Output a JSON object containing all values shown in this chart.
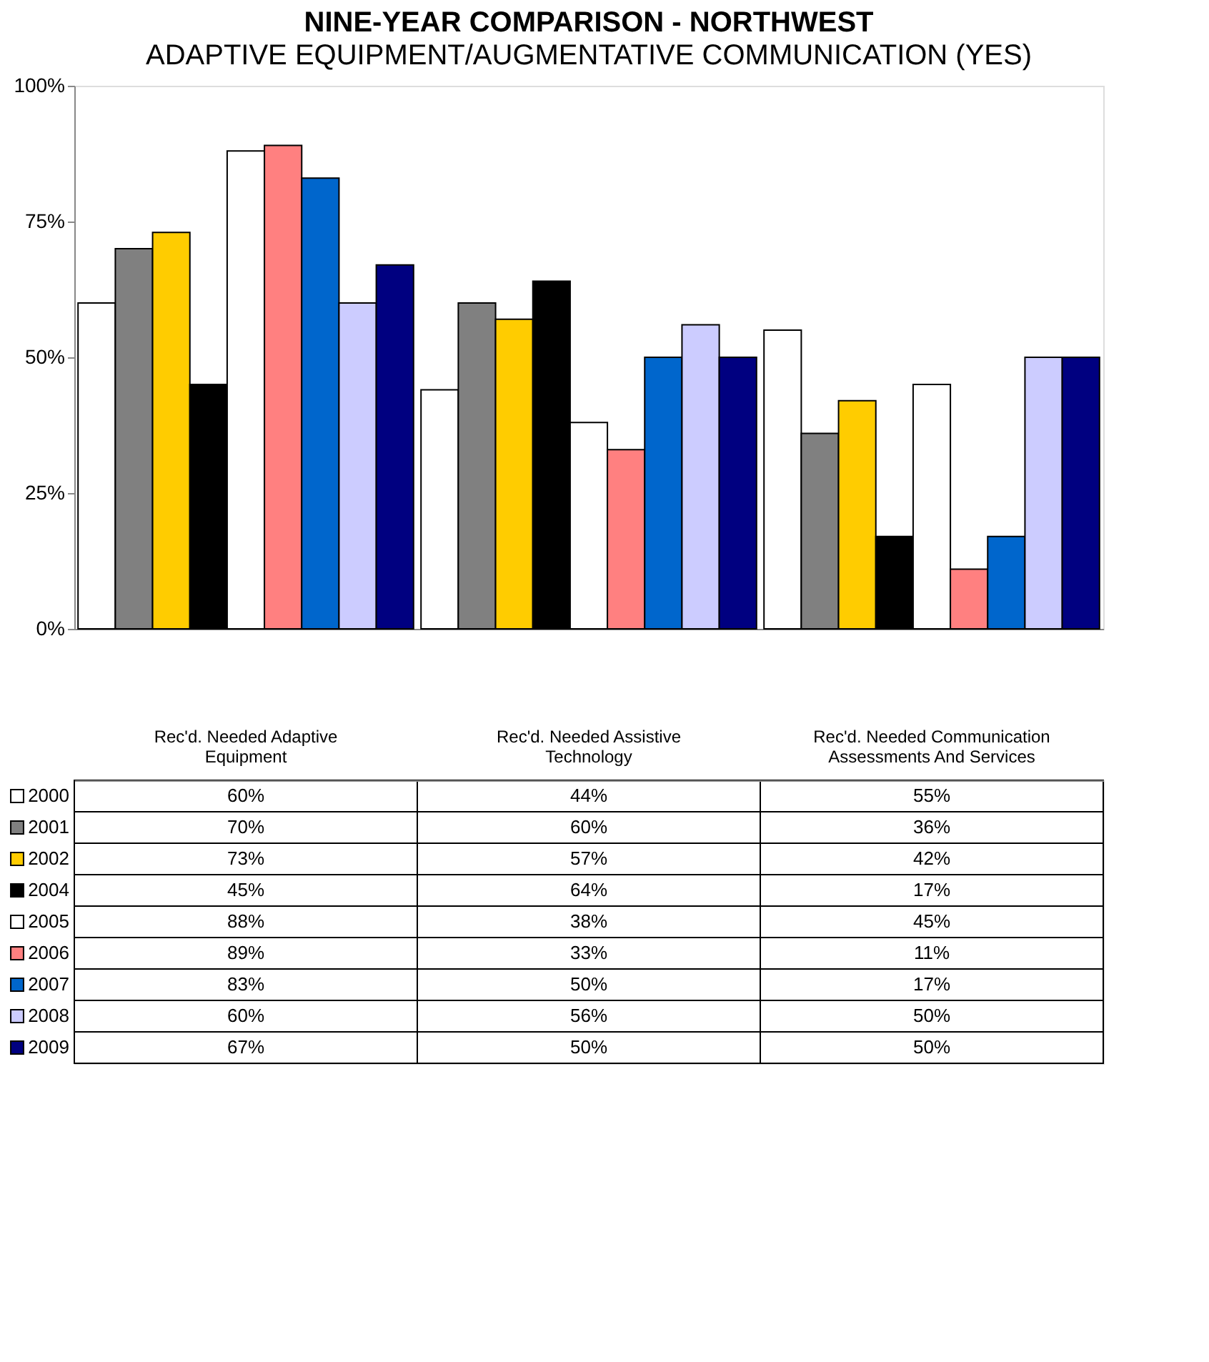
{
  "chart_data": {
    "type": "bar",
    "title": "NINE-YEAR COMPARISON - NORTHWEST",
    "subtitle": "ADAPTIVE EQUIPMENT/AUGMENTATIVE COMMUNICATION (YES)",
    "categories": [
      "Rec'd. Needed Adaptive Equipment",
      "Rec'd. Needed Assistive Technology",
      "Rec'd. Needed Communication Assessments And Services"
    ],
    "series": [
      {
        "name": "2000",
        "color": "#ffffff",
        "values": [
          60,
          44,
          55
        ],
        "value_labels": [
          "60%",
          "44%",
          "55%"
        ]
      },
      {
        "name": "2001",
        "color": "#808080",
        "values": [
          70,
          60,
          36
        ],
        "value_labels": [
          "70%",
          "60%",
          "36%"
        ]
      },
      {
        "name": "2002",
        "color": "#ffcc00",
        "values": [
          73,
          57,
          42
        ],
        "value_labels": [
          "73%",
          "57%",
          "42%"
        ]
      },
      {
        "name": "2004",
        "color": "#000000",
        "values": [
          45,
          64,
          17
        ],
        "value_labels": [
          "45%",
          "64%",
          "17%"
        ]
      },
      {
        "name": "2005",
        "color": "#ffffff",
        "values": [
          88,
          38,
          45
        ],
        "value_labels": [
          "88%",
          "38%",
          "45%"
        ]
      },
      {
        "name": "2006",
        "color": "#ff8080",
        "values": [
          89,
          33,
          11
        ],
        "value_labels": [
          "89%",
          "33%",
          "11%"
        ]
      },
      {
        "name": "2007",
        "color": "#0066cc",
        "values": [
          83,
          50,
          17
        ],
        "value_labels": [
          "83%",
          "50%",
          "17%"
        ]
      },
      {
        "name": "2008",
        "color": "#ccccff",
        "values": [
          60,
          56,
          50
        ],
        "value_labels": [
          "60%",
          "56%",
          "50%"
        ]
      },
      {
        "name": "2009",
        "color": "#000080",
        "values": [
          67,
          50,
          50
        ],
        "value_labels": [
          "67%",
          "50%",
          "50%"
        ]
      }
    ],
    "ylim": [
      0,
      100
    ],
    "yticks": [
      {
        "value": 0,
        "label": "0%"
      },
      {
        "value": 25,
        "label": "25%"
      },
      {
        "value": 50,
        "label": "50%"
      },
      {
        "value": 75,
        "label": "75%"
      },
      {
        "value": 100,
        "label": "100%"
      }
    ],
    "grid": false,
    "legend": "bottom"
  }
}
